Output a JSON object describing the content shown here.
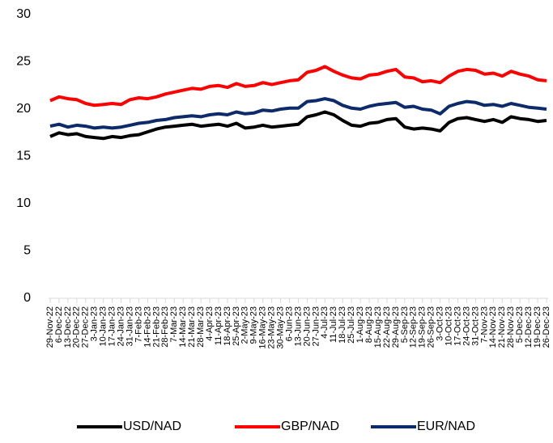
{
  "chart_data": {
    "type": "line",
    "categories": [
      "29-Nov-22",
      "6-Dec-22",
      "13-Dec-22",
      "20-Dec-22",
      "27-Dec-22",
      "3-Jan-23",
      "10-Jan-23",
      "17-Jan-23",
      "24-Jan-23",
      "31-Jan-23",
      "7-Feb-23",
      "14-Feb-23",
      "21-Feb-23",
      "28-Feb-23",
      "7-Mar-23",
      "14-Mar-23",
      "21-Mar-23",
      "28-Mar-23",
      "4-Apr-23",
      "11-Apr-23",
      "18-Apr-23",
      "25-Apr-23",
      "2-May-23",
      "9-May-23",
      "16-May-23",
      "23-May-23",
      "30-May-23",
      "6-Jun-23",
      "13-Jun-23",
      "20-Jun-23",
      "27-Jun-23",
      "4-Jul-23",
      "11-Jul-23",
      "18-Jul-23",
      "25-Jul-23",
      "1-Aug-23",
      "8-Aug-23",
      "15-Aug-23",
      "22-Aug-23",
      "29-Aug-23",
      "5-Sep-23",
      "12-Sep-23",
      "19-Sep-23",
      "26-Sep-23",
      "3-Oct-23",
      "10-Oct-23",
      "17-Oct-23",
      "24-Oct-23",
      "31-Oct-23",
      "7-Nov-23",
      "14-Nov-23",
      "21-Nov-23",
      "28-Nov-23",
      "5-Dec-23",
      "12-Dec-23",
      "19-Dec-23",
      "26-Dec-23"
    ],
    "series": [
      {
        "name": "USD/NAD",
        "color": "#000000",
        "values": [
          17.1,
          17.5,
          17.3,
          17.4,
          17.1,
          17.0,
          16.9,
          17.1,
          17.0,
          17.2,
          17.3,
          17.6,
          17.9,
          18.1,
          18.2,
          18.3,
          18.4,
          18.2,
          18.3,
          18.4,
          18.2,
          18.5,
          18.0,
          18.1,
          18.3,
          18.1,
          18.2,
          18.3,
          18.4,
          19.2,
          19.4,
          19.7,
          19.4,
          18.8,
          18.3,
          18.2,
          18.5,
          18.6,
          18.9,
          19.0,
          18.1,
          17.9,
          18.0,
          17.9,
          17.7,
          18.6,
          19.0,
          19.1,
          18.9,
          18.7,
          18.9,
          18.6,
          19.2,
          19.0,
          18.9,
          18.7,
          18.8
        ]
      },
      {
        "name": "GBP/NAD",
        "color": "#ff0000",
        "values": [
          20.9,
          21.3,
          21.1,
          21.0,
          20.6,
          20.4,
          20.5,
          20.6,
          20.5,
          21.0,
          21.2,
          21.1,
          21.3,
          21.6,
          21.8,
          22.0,
          22.2,
          22.1,
          22.4,
          22.5,
          22.3,
          22.7,
          22.4,
          22.5,
          22.8,
          22.6,
          22.8,
          23.0,
          23.1,
          23.9,
          24.1,
          24.5,
          24.0,
          23.6,
          23.3,
          23.2,
          23.6,
          23.7,
          24.0,
          24.2,
          23.4,
          23.3,
          22.9,
          23.0,
          22.8,
          23.5,
          24.0,
          24.2,
          24.1,
          23.7,
          23.8,
          23.5,
          24.0,
          23.7,
          23.5,
          23.1,
          23.0
        ]
      },
      {
        "name": "EUR/NAD",
        "color": "#0d2a6b",
        "values": [
          18.2,
          18.4,
          18.1,
          18.3,
          18.2,
          18.0,
          18.1,
          18.0,
          18.1,
          18.3,
          18.5,
          18.6,
          18.8,
          18.9,
          19.1,
          19.2,
          19.3,
          19.2,
          19.4,
          19.5,
          19.4,
          19.7,
          19.5,
          19.6,
          19.9,
          19.8,
          20.0,
          20.1,
          20.1,
          20.8,
          20.9,
          21.1,
          20.9,
          20.4,
          20.1,
          20.0,
          20.3,
          20.5,
          20.6,
          20.7,
          20.2,
          20.3,
          20.0,
          19.9,
          19.5,
          20.3,
          20.6,
          20.8,
          20.7,
          20.4,
          20.5,
          20.3,
          20.6,
          20.4,
          20.2,
          20.1,
          20.0
        ]
      }
    ],
    "ylim": [
      0,
      30
    ],
    "yticks": [
      0,
      5,
      10,
      15,
      20,
      25,
      30
    ],
    "grid": false,
    "legend": "bottom"
  }
}
